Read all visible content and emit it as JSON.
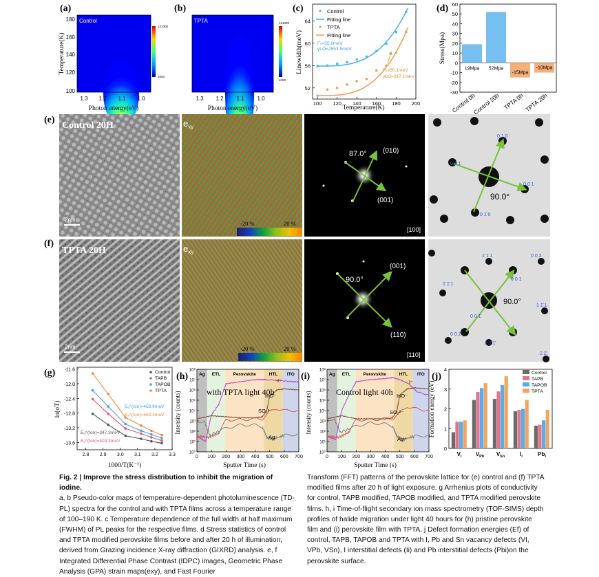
{
  "panels": {
    "a": {
      "letter": "(a)",
      "tag": "Control",
      "ylabel": "Temperature(K)",
      "xlabel": "Photon energy(eV)",
      "yticks": [
        "180",
        "160",
        "140",
        "120",
        "100"
      ],
      "xticks": [
        "1.3",
        "1.2",
        "1.1",
        "1.0"
      ],
      "cbar_max": "121300",
      "cbar_min": "4000"
    },
    "b": {
      "letter": "(b)",
      "tag": "TPTA",
      "xlabel": "Photon energy(eV)",
      "xticks": [
        "1.3",
        "1.2",
        "1.1",
        "1.0"
      ],
      "cbar_max": "121300",
      "cbar_min": "4000"
    },
    "c": {
      "letter": "(c)",
      "ylabel": "Linewidth(meV)",
      "xlabel": "Temperature(K)",
      "legend": [
        "Control",
        "Fitting line",
        "TPTA",
        "Fitting line"
      ],
      "ann_control_1": "Γ₀=55.8meV",
      "ann_control_2": "γLO=2553.5meV",
      "ann_tpta_1": "Γ₀=50.1meV",
      "ann_tpta_2": "γLO=317.1meV"
    },
    "d": {
      "letter": "(d)",
      "ylabel": "Stress(Mpa)",
      "labels": [
        "19Mpa",
        "52Mpa",
        "-15Mpa",
        "-10Mpa"
      ]
    },
    "e": {
      "letter": "(e)",
      "title": "Control 20H",
      "scale": "2nm",
      "gpa_label": "e",
      "gpa_sub": "xy",
      "cbar_min": "-20 %",
      "cbar_max": "20 %",
      "angle1": "87.0°",
      "angle2": "90.0°",
      "spot1": "(010)",
      "spot2": "(001)",
      "zone": "[100]",
      "sim_labels": [
        "0 1 0",
        "0 0 1̄",
        "0 0 1",
        "0 1̄ 0"
      ]
    },
    "f": {
      "letter": "(f)",
      "title": "TPTA 20H",
      "scale": "2nm",
      "gpa_label": "e",
      "gpa_sub": "xy",
      "cbar_min": "-20 %",
      "cbar_max": "20 %",
      "angle1": "90.0°",
      "angle2": "90.0°",
      "spot1": "(001)",
      "spot2": "(110)",
      "zone": "[110]",
      "sim_labels": [
        "1̄ 1 1",
        "0 0 2",
        "1̄ 1̄ 1",
        "0 0 1",
        "1 1̄ 1",
        "0 0 1̄",
        "0 0 2̄",
        "1 1̄ 1̄",
        "2 2̄"
      ]
    },
    "g": {
      "letter": "(g)",
      "ylabel": "ln(σT)",
      "xlabel": "1000/T(K⁻¹)",
      "legend": [
        "Control",
        "TAPB",
        "TAPOB",
        "TPTA"
      ],
      "ann": [
        "Eₐ^(Ion)=452.9meV",
        "Eₐ^(Ion)=563.3meV",
        "Eₐ^(Ion)=347.3meV",
        "Eₐ^(Ion)=403.3meV"
      ]
    },
    "h": {
      "letter": "(h)",
      "ylabel": "Intensity (counts)",
      "xlabel": "Sputter Time (s)",
      "layers": [
        "Ag",
        "ETL",
        "Perovskite",
        "HTL",
        "ITO"
      ],
      "note": "with TPTA light 40h",
      "species": [
        "I⁻",
        "InO⁻",
        "SO₂²⁻",
        "Ag⁻"
      ]
    },
    "i": {
      "letter": "(i)",
      "ylabel": "Intensity (counts)",
      "xlabel": "Sputter Time (s)",
      "layers": [
        "Ag",
        "ETL",
        "Perovskite",
        "HTL",
        "ITO"
      ],
      "note": "Control light 40h",
      "species": [
        "I⁻",
        "InO⁻",
        "SO₂²⁻",
        "Ag⁻"
      ]
    },
    "j": {
      "letter": "(j)",
      "ylabel": "Formation energy (eV)",
      "legend": [
        "Control",
        "TAPB",
        "TAPOB",
        "TPTA"
      ]
    }
  },
  "caption": {
    "head": "Fig. 2 | Improve the stress distribution to inhibit the migration of iodine.",
    "left": "a, b Pseudo-color maps of temperature-dependent photoluminescence (TD-PL) spectra for the control and with TPTA films across a temperature range of 100–190 K. c Temperature dependence of the full width at half maximum (FWHM) of PL peaks for the respective films. d Stress statistics of control and TPTA modified perovskite films before and after 20 h of illumination, derived from Grazing incidence X-ray diffraction (GIXRD) analysis. e, f Integrated Differential Phase Contrast (IDPC) images, Geometric Phase Analysis (GPA) strain maps(exy), and Fast Fourier",
    "right": "Transform (FFT) patterns of the perovskite lattice for (e) control and (f) TPTA modified films after 20 h of light exposure. g Arrhenius plots of conductivity for control, TAPB modified, TAPOB modified, and TPTA modified perovskite films. h, i Time-of-flight secondary ion mass spectrometry (TOF-SIMS) depth profiles of halide migration under light 40 hours for (h) pristine perovskite film and (i) perovskite film with TPTA. j Defect formation energies (Ef) of control, TAPB, TAPOB and TPTA with I, Pb and Sn vacancy defects (VI, VPb, VSn), I interstitial defects (Ii) and Pb interstitial defects (Pbi)on the perovskite surface."
  },
  "chart_data": [
    {
      "type": "scatter",
      "panel": "c",
      "title": "",
      "xlabel": "Temperature(K)",
      "ylabel": "Linewidth(meV)",
      "xlim": [
        95,
        200
      ],
      "ylim": [
        50,
        67
      ],
      "x_ticks": [
        100,
        120,
        140,
        160,
        180,
        200
      ],
      "y_ticks": [
        52,
        56,
        60,
        64
      ],
      "series": [
        {
          "name": "Control",
          "color": "#4fb3e6",
          "x": [
            100,
            110,
            120,
            130,
            140,
            150,
            160,
            170,
            180,
            190
          ],
          "y": [
            55.9,
            56.0,
            56.3,
            56.6,
            57.1,
            57.6,
            58.6,
            59.9,
            62.0,
            65.6
          ]
        },
        {
          "name": "TPTA",
          "color": "#f0a050",
          "x": [
            100,
            110,
            120,
            130,
            140,
            150,
            160,
            170,
            180,
            190
          ],
          "y": [
            50.6,
            51.7,
            52.0,
            52.6,
            53.2,
            53.6,
            55.1,
            56.0,
            58.3,
            62.0
          ]
        }
      ]
    },
    {
      "type": "bar",
      "panel": "d",
      "title": "",
      "xlabel": "",
      "ylabel": "Stress(Mpa)",
      "categories": [
        "Control 0h",
        "Control 20h",
        "TPTA 0h",
        "TPTA 20h"
      ],
      "values": [
        19,
        52,
        -15,
        -10
      ],
      "ylim": [
        -30,
        60
      ],
      "y_ticks": [
        -30,
        -20,
        -10,
        0,
        10,
        20,
        30,
        40,
        50,
        60
      ],
      "colors": [
        "#76bff0",
        "#76bff0",
        "#f3b07c",
        "#f3b07c"
      ]
    },
    {
      "type": "line",
      "panel": "g",
      "title": "",
      "xlabel": "1000/T(K⁻¹)",
      "ylabel": "ln(σT)",
      "xlim": [
        2.75,
        3.3
      ],
      "ylim": [
        -13.8,
        -11.55
      ],
      "x_ticks": [
        2.8,
        2.9,
        3.0,
        3.1,
        3.2,
        3.3
      ],
      "y_ticks": [
        -11.6,
        -12.0,
        -12.4,
        -12.8,
        -13.2,
        -13.6
      ],
      "series": [
        {
          "name": "Control",
          "color": "#555555",
          "x": [
            2.84,
            2.93,
            3.03,
            3.12,
            3.18,
            3.24
          ],
          "y": [
            -12.82,
            -13.12,
            -13.42,
            -13.5,
            -13.57,
            -13.62
          ]
        },
        {
          "name": "TAPB",
          "color": "#e8556a",
          "x": [
            2.84,
            2.93,
            3.03,
            3.12,
            3.18,
            3.24
          ],
          "y": [
            -12.42,
            -12.82,
            -13.22,
            -13.36,
            -13.46,
            -13.55
          ]
        },
        {
          "name": "TAPOB",
          "color": "#3fa2e6",
          "x": [
            2.84,
            2.93,
            3.03,
            3.12,
            3.18,
            3.24
          ],
          "y": [
            -12.18,
            -12.62,
            -13.1,
            -13.28,
            -13.38,
            -13.48
          ]
        },
        {
          "name": "TPTA",
          "color": "#f08a3a",
          "x": [
            2.84,
            2.93,
            3.03,
            3.12,
            3.18,
            3.24
          ],
          "y": [
            -11.72,
            -12.28,
            -12.92,
            -13.14,
            -13.28,
            -13.4
          ]
        }
      ]
    },
    {
      "type": "bar",
      "panel": "j",
      "title": "",
      "xlabel": "",
      "ylabel": "Formation energy (eV)",
      "categories": [
        "V_I",
        "V_Pb",
        "V_Sn",
        "I_i",
        "Pb_i"
      ],
      "ylim": [
        0,
        4
      ],
      "y_ticks": [
        0,
        1,
        2,
        3,
        4
      ],
      "series": [
        {
          "name": "Control",
          "color": "#6b6b6b",
          "values": [
            0.82,
            2.45,
            2.5,
            1.88,
            1.15
          ]
        },
        {
          "name": "TAPB",
          "color": "#e27589",
          "values": [
            1.35,
            2.85,
            2.88,
            1.95,
            1.2
          ]
        },
        {
          "name": "TAPOB",
          "color": "#55aef0",
          "values": [
            1.35,
            3.05,
            3.2,
            2.0,
            1.42
          ]
        },
        {
          "name": "TPTA",
          "color": "#f3a45e",
          "values": [
            1.42,
            3.3,
            3.65,
            2.45,
            1.95
          ]
        }
      ]
    },
    {
      "type": "line",
      "panel": "h",
      "title": "",
      "xlabel": "Sputter Time (s)",
      "ylabel": "Intensity (counts)",
      "xlim": [
        0,
        700
      ],
      "x_ticks": [
        0,
        100,
        200,
        300,
        400,
        500,
        600,
        700
      ],
      "y_ticks_labels": [
        "10⁰",
        "10¹",
        "10²",
        "10³",
        "10⁴",
        "10⁵",
        "10⁶",
        "10⁷",
        "10⁸"
      ],
      "series": [
        {
          "name": "I⁻",
          "color": "#b53ed3",
          "x": [
            0,
            60,
            100,
            150,
            200,
            300,
            400,
            450,
            480,
            520,
            580,
            650,
            700
          ],
          "y": [
            1.5,
            1.0,
            3.6,
            4.6,
            6.6,
            6.8,
            7.0,
            7.0,
            7.0,
            6.95,
            6.9,
            6.8,
            6.8
          ]
        },
        {
          "name": "InO⁻",
          "color": "#7a4a33",
          "x": [
            0,
            100,
            200,
            300,
            400,
            450,
            480,
            500,
            550,
            600,
            700
          ],
          "y": [
            3.2,
            3.5,
            3.4,
            3.3,
            3.3,
            3.4,
            4.0,
            5.4,
            6.0,
            6.1,
            6.0
          ]
        },
        {
          "name": "SO₂²⁻",
          "color": "#d25a5a",
          "x": [
            0,
            80,
            150,
            200,
            300,
            400,
            450,
            500,
            550,
            600,
            700
          ],
          "y": [
            1.5,
            1.4,
            1.8,
            3.1,
            3.1,
            3.2,
            3.2,
            3.9,
            4.2,
            4.0,
            4.0
          ]
        },
        {
          "name": "Ag⁻",
          "color": "#808080",
          "x": [
            0,
            50,
            90,
            150,
            200,
            300,
            400,
            450,
            480,
            520,
            600,
            700
          ],
          "y": [
            2.9,
            3.0,
            1.6,
            2.0,
            2.3,
            2.6,
            2.6,
            2.4,
            1.4,
            1.2,
            1.6,
            1.7
          ]
        }
      ]
    },
    {
      "type": "line",
      "panel": "i",
      "title": "",
      "xlabel": "Sputter Time (s)",
      "ylabel": "Intensity (counts)",
      "xlim": [
        0,
        700
      ],
      "x_ticks": [
        0,
        100,
        200,
        300,
        400,
        500,
        600,
        700
      ],
      "y_ticks_labels": [
        "10⁰",
        "10¹",
        "10²",
        "10³",
        "10⁴",
        "10⁵",
        "10⁶",
        "10⁷",
        "10⁸"
      ],
      "series": [
        {
          "name": "I⁻",
          "color": "#b53ed3",
          "x": [
            0,
            60,
            100,
            150,
            200,
            300,
            400,
            450,
            500,
            560,
            620,
            700
          ],
          "y": [
            1.5,
            1.2,
            4.0,
            5.5,
            6.8,
            7.0,
            7.1,
            7.2,
            7.0,
            6.6,
            5.8,
            5.5
          ]
        },
        {
          "name": "InO⁻",
          "color": "#7a4a33",
          "x": [
            0,
            100,
            200,
            300,
            400,
            450,
            480,
            500,
            550,
            600,
            700
          ],
          "y": [
            3.2,
            3.5,
            3.2,
            3.2,
            3.2,
            3.3,
            4.0,
            5.5,
            6.1,
            6.2,
            6.1
          ]
        },
        {
          "name": "SO₂²⁻",
          "color": "#d25a5a",
          "x": [
            0,
            80,
            150,
            200,
            300,
            400,
            450,
            500,
            550,
            600,
            700
          ],
          "y": [
            1.5,
            1.4,
            1.9,
            3.1,
            3.1,
            3.2,
            3.2,
            3.8,
            4.4,
            4.2,
            4.0
          ]
        },
        {
          "name": "Ag⁻",
          "color": "#808080",
          "x": [
            0,
            50,
            90,
            150,
            200,
            300,
            400,
            450,
            480,
            520,
            600,
            700
          ],
          "y": [
            3.1,
            3.2,
            1.9,
            2.2,
            2.5,
            2.8,
            2.7,
            2.5,
            1.5,
            1.2,
            1.5,
            1.6
          ]
        }
      ]
    }
  ]
}
